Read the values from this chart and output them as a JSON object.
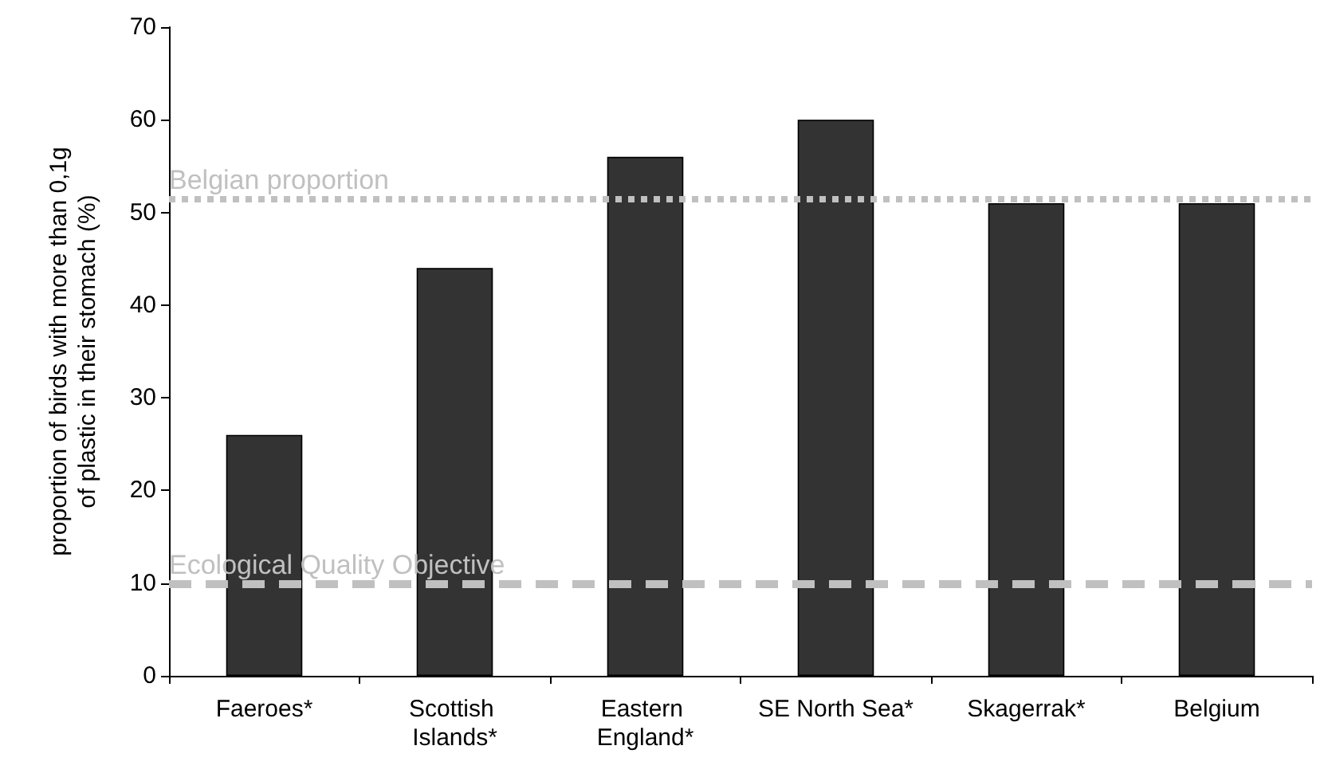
{
  "chart_data": {
    "type": "bar",
    "ylabel": "proportion of birds with more than 0,1g\nof plastic in their stomach (%)",
    "categories": [
      "Faeroes*",
      "Scottish Islands*",
      "Eastern England*",
      "SE North Sea*",
      "Skagerrak*",
      "Belgium"
    ],
    "values": [
      26,
      44,
      56,
      60,
      51,
      51
    ],
    "color": "#333333",
    "ylim": [
      0,
      70
    ],
    "yticks": [
      0,
      10,
      20,
      30,
      40,
      50,
      60,
      70
    ],
    "grid": false,
    "ref_lines": [
      {
        "axis": "y",
        "value": 51.5,
        "label": "Belgian proportion",
        "color": "#c0c0c0",
        "line_style": "dotted"
      },
      {
        "axis": "y",
        "value": 10,
        "label": "Ecological Quality Objective",
        "color": "#c0c0c0",
        "line_style": "dashed"
      }
    ]
  }
}
